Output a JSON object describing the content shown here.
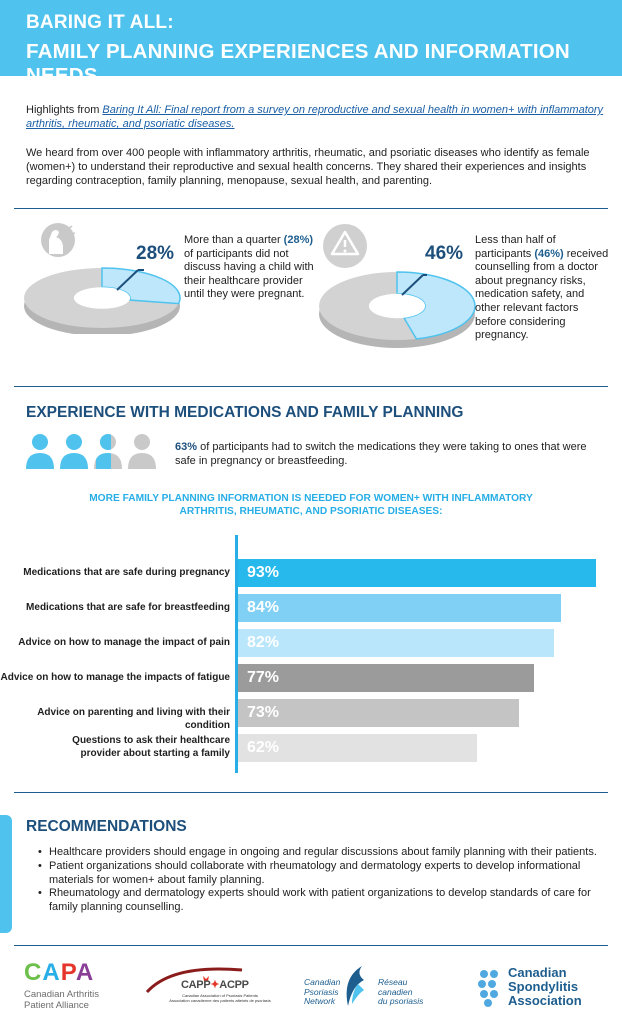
{
  "header": {
    "title_line1": "BARING IT ALL:",
    "title_line2": "FAMILY PLANNING EXPERIENCES AND INFORMATION NEEDS"
  },
  "intro": {
    "prefix": "Highlights from ",
    "link_text": "Baring It All: Final report from a survey on reproductive and sexual health in women+ with inflammatory arthritis, rheumatic, and psoriatic diseases.",
    "paragraph": "We heard from over 400 people with inflammatory arthritis, rheumatic, and psoriatic diseases who identify as female (women+) to understand their reproductive and sexual health concerns. They shared their experiences and insights regarding contraception, family planning, menopause, sexual health, and parenting."
  },
  "stats": [
    {
      "icon": "pregnant-woman-icon",
      "value": "28%",
      "fraction": 0.28,
      "text_pre": "More than a quarter ",
      "text_bold": "(28%)",
      "text_post": " of participants did not discuss having a child with their healthcare provider until they were pregnant."
    },
    {
      "icon": "warning-icon",
      "value": "46%",
      "fraction": 0.46,
      "text_pre": "Less than half of participants ",
      "text_bold": "(46%)",
      "text_post": " received counselling from a doctor about pregnancy risks, medication safety, and other relevant factors before considering pregnancy."
    }
  ],
  "medications": {
    "title": "EXPERIENCE WITH MEDICATIONS AND FAMILY PLANNING",
    "stat_bold": "63%",
    "stat_text": " of participants had to switch the medications they were taking to ones that were safe in pregnancy or breastfeeding.",
    "people_fraction": 0.63
  },
  "chart_data": {
    "type": "bar",
    "title": "MORE FAMILY PLANNING INFORMATION IS NEEDED FOR WOMEN+ WITH INFLAMMATORY ARTHRITIS, RHEUMATIC, AND PSORIATIC DISEASES:",
    "categories": [
      "Medications that are safe during pregnancy",
      "Medications that are safe for breastfeeding",
      "Advice on how to manage the impact of pain",
      "Advice on how to manage the impacts of fatigue",
      "Advice on parenting and living with their condition",
      "Questions to ask their healthcare provider about starting a family"
    ],
    "values": [
      93,
      84,
      82,
      77,
      73,
      62
    ],
    "value_labels": [
      "93%",
      "84%",
      "82%",
      "77%",
      "73%",
      "62%"
    ],
    "colors": [
      "#27b8ec",
      "#7fd0f4",
      "#b9e6fa",
      "#9b9b9b",
      "#c4c4c4",
      "#e2e2e2"
    ],
    "orientation": "horizontal",
    "xlim": [
      0,
      93
    ]
  },
  "recommendations": {
    "title": "RECOMMENDATIONS",
    "items": [
      "Healthcare providers should engage in ongoing and regular discussions about family planning with their patients.",
      "Patient organizations should collaborate with rheumatology and dermatology experts to develop informational materials for women+ about family planning.",
      "Rheumatology and dermatology experts should work with patient organizations to develop standards of care for family planning counselling."
    ]
  },
  "logos": {
    "capa_name": "CAPA",
    "capa_sub1": "Canadian Arthritis",
    "capa_sub2": "Patient Alliance",
    "capp_name": "CAPP",
    "capp_acpp": "ACPP",
    "capp_sub1": "Canadian Association of Psoriasis Patients",
    "capp_sub2": "Association canadienne des patients atteints de psoriasis",
    "cpn_en1": "Canadian",
    "cpn_en2": "Psoriasis",
    "cpn_en3": "Network",
    "cpn_fr1": "Réseau",
    "cpn_fr2": "canadien",
    "cpn_fr3": "du psoriasis",
    "csa_line1": "Canadian",
    "csa_line2": "Spondylitis",
    "csa_line3": "Association"
  }
}
